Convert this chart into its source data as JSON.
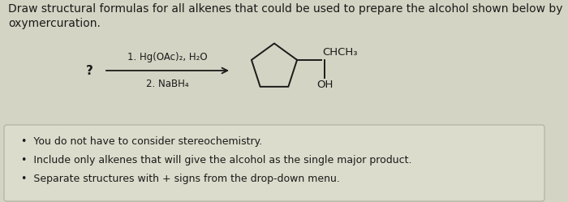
{
  "bg_color": "#d4d4c4",
  "title_text": "Draw structural formulas for all alkenes that could be used to prepare the alcohol shown below by\noxymercuration.",
  "title_fontsize": 10.0,
  "question_mark": "?",
  "reagent_line1": "1. Hg(OAc)₂, H₂O",
  "reagent_line2": "2. NaBH₄",
  "bullet_bg": "#dcdccc",
  "bullet_border": "#b0b0a0",
  "bullet_points": [
    "You do not have to consider stereochemistry.",
    "Include only alkenes that will give the alcohol as the single major product.",
    "Separate structures with + signs from the drop-down menu."
  ],
  "bullet_fontsize": 9.0,
  "chch3_label": "CHCH₃",
  "oh_label": "OH",
  "text_color": "#1a1a1a"
}
